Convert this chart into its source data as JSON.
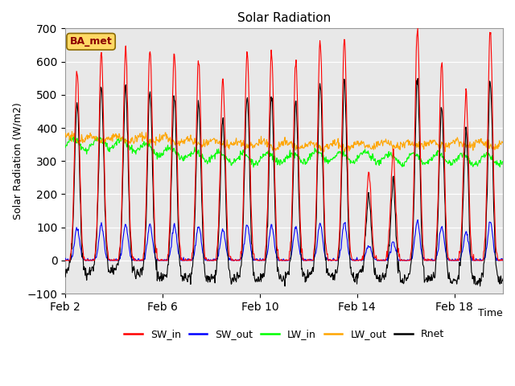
{
  "title": "Solar Radiation",
  "ylabel": "Solar Radiation (W/m2)",
  "xlabel": "Time",
  "ylim": [
    -100,
    700
  ],
  "yticks": [
    -100,
    0,
    100,
    200,
    300,
    400,
    500,
    600,
    700
  ],
  "xtick_labels": [
    "Feb 2",
    "Feb 6",
    "Feb 10",
    "Feb 14",
    "Feb 18"
  ],
  "xtick_positions": [
    0,
    4,
    8,
    12,
    16
  ],
  "annotation": "BA_met",
  "line_colors": {
    "SW_in": "#ff0000",
    "SW_out": "#0000ff",
    "LW_in": "#00ff00",
    "LW_out": "#ffa500",
    "Rnet": "#000000"
  },
  "legend_labels": [
    "SW_in",
    "SW_out",
    "LW_in",
    "LW_out",
    "Rnet"
  ],
  "background_color": "#e8e8e8",
  "fig_background": "#ffffff",
  "n_days": 18,
  "start_day": 2,
  "n_per_day": 48
}
